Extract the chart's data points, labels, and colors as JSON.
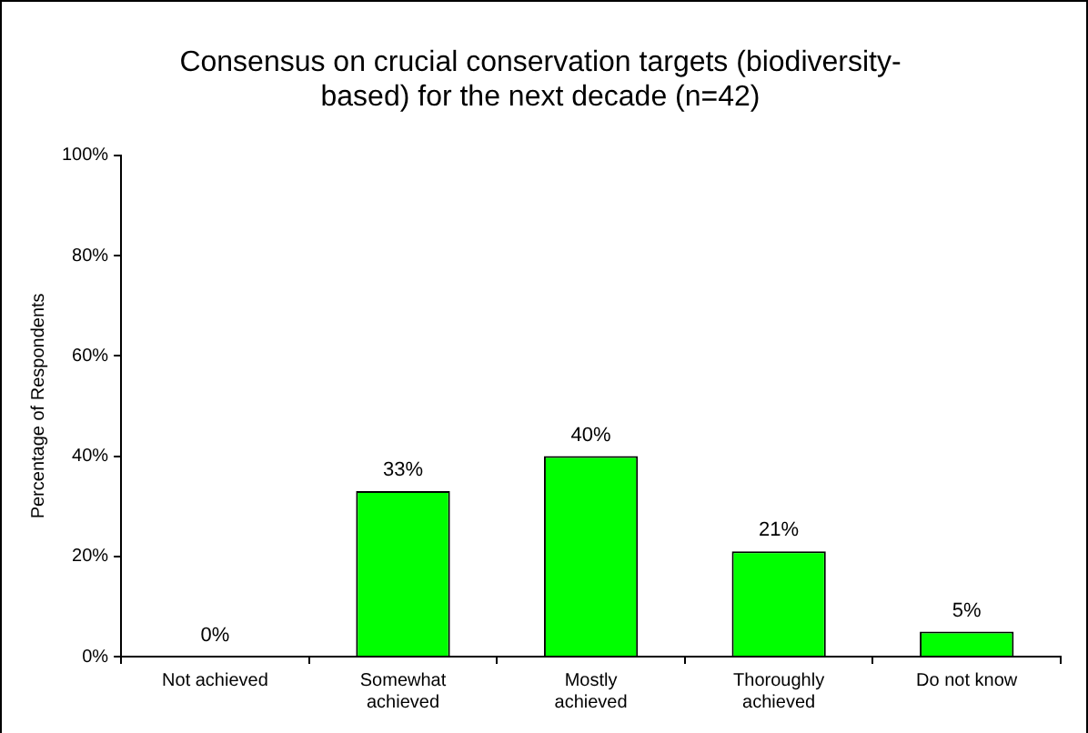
{
  "chart_data": {
    "type": "bar",
    "title": "Consensus on crucial conservation targets (biodiversity-based) for the next decade (n=42)",
    "ylabel": "Percentage of Respondents",
    "categories": [
      "Not achieved",
      "Somewhat achieved",
      "Mostly achieved",
      "Thoroughly achieved",
      "Do not know"
    ],
    "values": [
      0,
      33,
      40,
      21,
      5
    ],
    "color": "#00ff00",
    "value_labels": [
      "0%",
      "33%",
      "40%",
      "21%",
      "5%"
    ],
    "ylim": [
      0,
      100
    ],
    "yticks": [
      {
        "value": 0,
        "label": "0%"
      },
      {
        "value": 20,
        "label": "20%"
      },
      {
        "value": 40,
        "label": "40%"
      },
      {
        "value": 60,
        "label": "60%"
      },
      {
        "value": 80,
        "label": "80%"
      },
      {
        "value": 100,
        "label": "100%"
      }
    ],
    "grid": false,
    "legend": false
  }
}
